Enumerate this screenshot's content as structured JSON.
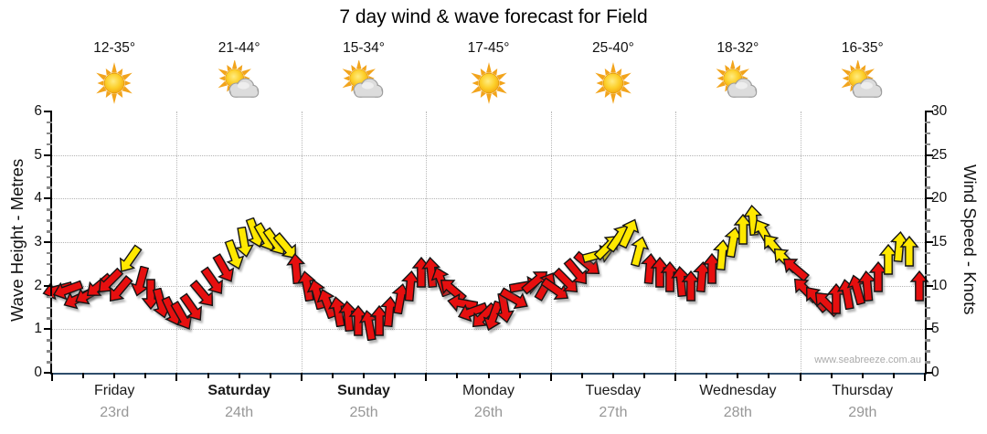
{
  "title": "7 day wind & wave forecast for Field",
  "watermark": "www.seabreeze.com.au",
  "days": [
    {
      "name": "Friday",
      "date": "23rd",
      "temp": "12-35°",
      "icon": "sunny",
      "weekend": false
    },
    {
      "name": "Saturday",
      "date": "24th",
      "temp": "21-44°",
      "icon": "sun-and-cloud",
      "weekend": true
    },
    {
      "name": "Sunday",
      "date": "25th",
      "temp": "15-34°",
      "icon": "sun-and-cloud",
      "weekend": true
    },
    {
      "name": "Monday",
      "date": "26th",
      "temp": "17-45°",
      "icon": "sunny",
      "weekend": false
    },
    {
      "name": "Tuesday",
      "date": "27th",
      "temp": "25-40°",
      "icon": "sunny",
      "weekend": false
    },
    {
      "name": "Wednesday",
      "date": "28th",
      "temp": "18-32°",
      "icon": "sun-and-cloud",
      "weekend": false
    },
    {
      "name": "Thursday",
      "date": "29th",
      "temp": "16-35°",
      "icon": "sun-and-cloud",
      "weekend": false
    }
  ],
  "chart_data": {
    "type": "scatter",
    "subtype": "wind-direction-arrows",
    "title": "7 day wind & wave forecast for Field",
    "left_axis": {
      "label": "Wave Height - Metres",
      "min": 0,
      "max": 6,
      "ticks": [
        0,
        1,
        2,
        3,
        4,
        5,
        6
      ]
    },
    "right_axis": {
      "label": "Wind Speed - Knots",
      "min": 0,
      "max": 30,
      "ticks": [
        0,
        5,
        10,
        15,
        20,
        25,
        30
      ]
    },
    "grid": "dotted horizontal at each metre, dotted vertical at day boundaries",
    "legend_position": "none",
    "interval_hours": 2,
    "colors": {
      "light_wind_arrow": "#e60f0f",
      "strong_wind_arrow": "#ffe800",
      "strong_threshold_knots": 13,
      "bottom_axis": "#2e4d6b"
    },
    "series": [
      {
        "day": "Friday",
        "knots": [
          9.5,
          9.5,
          8.5,
          9,
          10,
          10.5,
          9.5,
          13,
          10.5,
          9,
          8,
          7
        ],
        "direction": [
          255,
          250,
          245,
          240,
          230,
          225,
          220,
          215,
          195,
          180,
          165,
          155
        ],
        "color": [
          "red",
          "red",
          "red",
          "red",
          "red",
          "red",
          "red",
          "yellow",
          "red",
          "red",
          "red",
          "red"
        ]
      },
      {
        "day": "Saturday",
        "knots": [
          6.5,
          7.5,
          9,
          10.5,
          12,
          13.5,
          15,
          16,
          15.5,
          15,
          14.5,
          12
        ],
        "direction": [
          150,
          145,
          140,
          145,
          150,
          160,
          170,
          160,
          150,
          145,
          140,
          355
        ],
        "color": [
          "red",
          "red",
          "red",
          "red",
          "red",
          "yellow",
          "yellow",
          "yellow",
          "yellow",
          "yellow",
          "yellow",
          "red"
        ]
      },
      {
        "day": "Sunday",
        "knots": [
          10,
          9,
          8,
          7,
          6.5,
          6,
          5.5,
          6,
          7,
          8.5,
          10,
          11.5
        ],
        "direction": [
          350,
          345,
          340,
          350,
          355,
          0,
          350,
          0,
          5,
          10,
          5,
          0
        ],
        "color": [
          "red",
          "red",
          "red",
          "red",
          "red",
          "red",
          "red",
          "red",
          "red",
          "red",
          "red",
          "red"
        ]
      },
      {
        "day": "Monday",
        "knots": [
          11.5,
          10.5,
          9.5,
          8,
          7,
          6.5,
          6.5,
          7.5,
          8.5,
          10,
          10.5,
          10
        ],
        "direction": [
          355,
          340,
          310,
          280,
          250,
          225,
          200,
          170,
          120,
          80,
          50,
          30
        ],
        "color": [
          "red",
          "red",
          "red",
          "red",
          "red",
          "red",
          "red",
          "red",
          "red",
          "red",
          "red",
          "red"
        ]
      },
      {
        "day": "Tuesday",
        "knots": [
          9.5,
          10.5,
          11.5,
          12.5,
          13.5,
          14.5,
          15.5,
          16,
          14,
          12,
          11.5,
          11
        ],
        "direction": [
          125,
          135,
          140,
          130,
          75,
          45,
          35,
          25,
          15,
          5,
          0,
          0
        ],
        "color": [
          "red",
          "red",
          "red",
          "red",
          "yellow",
          "yellow",
          "yellow",
          "yellow",
          "yellow",
          "red",
          "red",
          "red"
        ]
      },
      {
        "day": "Wednesday",
        "knots": [
          10.5,
          10,
          11,
          12,
          13.5,
          15,
          16.5,
          17.5,
          16,
          14.5,
          13,
          12
        ],
        "direction": [
          355,
          0,
          5,
          0,
          5,
          10,
          0,
          355,
          330,
          320,
          315,
          310
        ],
        "color": [
          "red",
          "red",
          "red",
          "red",
          "yellow",
          "yellow",
          "yellow",
          "yellow",
          "yellow",
          "yellow",
          "yellow",
          "red"
        ]
      },
      {
        "day": "Thursday",
        "knots": [
          9.5,
          8.5,
          8,
          8.5,
          9,
          9.5,
          10,
          11,
          13,
          14.5,
          14,
          10
        ],
        "direction": [
          315,
          320,
          315,
          0,
          350,
          345,
          355,
          0,
          0,
          5,
          0,
          0
        ],
        "color": [
          "red",
          "red",
          "red",
          "red",
          "red",
          "red",
          "red",
          "red",
          "yellow",
          "yellow",
          "yellow",
          "red"
        ]
      }
    ]
  }
}
